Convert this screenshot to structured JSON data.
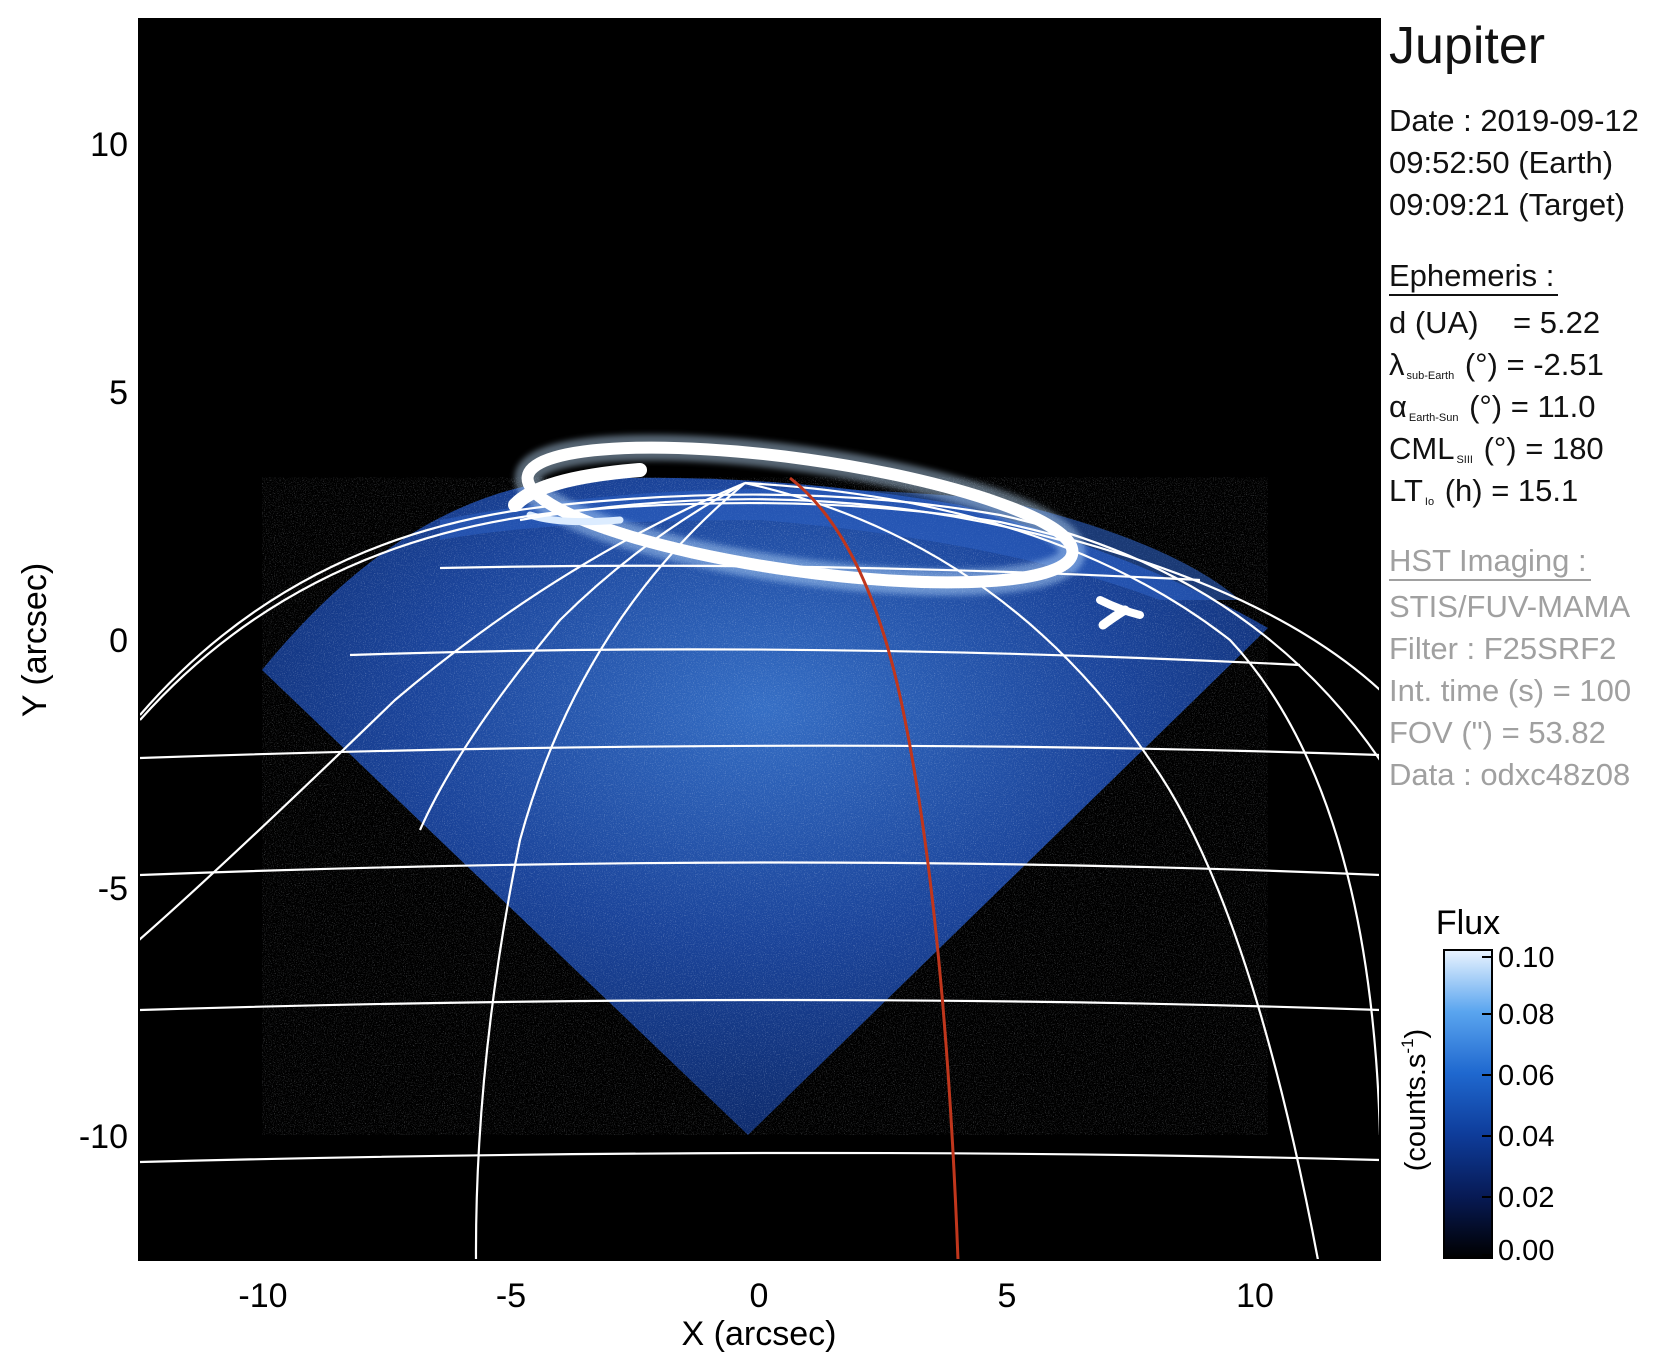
{
  "title": "Jupiter",
  "date_block": {
    "date": "Date : 2019-09-12",
    "earth_time": "09:52:50 (Earth)",
    "target_time": "09:09:21 (Target)"
  },
  "ephemeris": {
    "header": "Ephemeris :",
    "rows": [
      {
        "sym": "d (UA)",
        "sub": "",
        "rest": "    = 5.22"
      },
      {
        "sym": "λ",
        "sub": "sub-Earth",
        "rest": " (°) = -2.51"
      },
      {
        "sym": "α",
        "sub": "Earth-Sun",
        "rest": " (°) = 11.0"
      },
      {
        "sym": "CML",
        "sub": "SIII",
        "rest": " (°) = 180"
      },
      {
        "sym": "LT",
        "sub": "Io",
        "rest": " (h) = 15.1"
      }
    ]
  },
  "hst": {
    "header": "HST Imaging :",
    "rows": [
      "STIS/FUV-MAMA",
      "Filter : F25SRF2",
      "Int. time (s) = 100",
      "FOV (\") = 53.82",
      "Data : odxc48z08"
    ]
  },
  "axes": {
    "xlabel": "X (arcsec)",
    "ylabel": "Y (arcsec)",
    "xticks": [
      "-10",
      "-5",
      "0",
      "5",
      "10"
    ],
    "yticks": [
      "10",
      "5",
      "0",
      "-5",
      "-10"
    ]
  },
  "colorbar": {
    "title": "Flux",
    "label": "(counts.s",
    "label_sup": "-1",
    "label_end": ")",
    "ticks": [
      "0.10",
      "0.08",
      "0.06",
      "0.04",
      "0.02",
      "0.00"
    ]
  },
  "colors": {
    "background": "#000000",
    "grid": "#ffffff",
    "meridian": "#c0361c",
    "aurora": "#f2f8ff",
    "disk": "#1f4fb0",
    "metadata_gray": "#a0a0a0"
  }
}
